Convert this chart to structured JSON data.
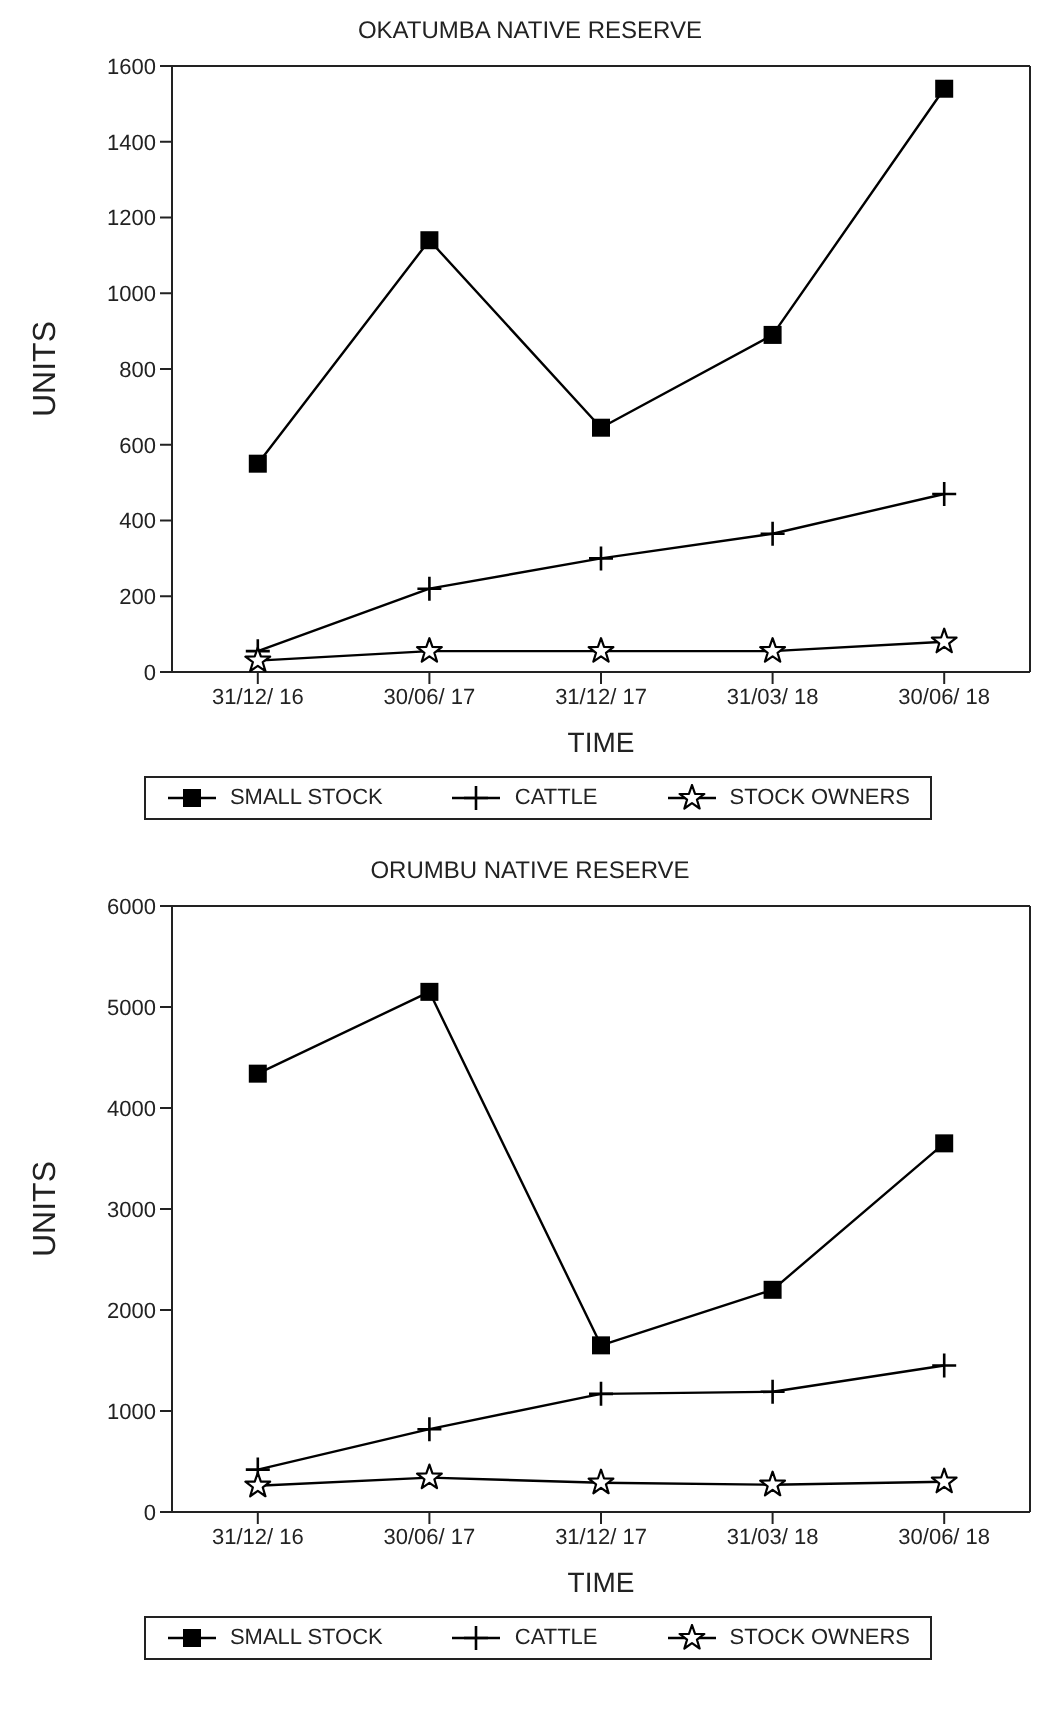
{
  "chart_data": [
    {
      "type": "line",
      "title": "OKATUMBA NATIVE RESERVE",
      "xlabel": "TIME",
      "ylabel": "UNITS",
      "categories": [
        "31/12/ 16",
        "30/06/ 17",
        "31/12/ 17",
        "31/03/ 18",
        "30/06/ 18"
      ],
      "ylim": [
        0,
        1600
      ],
      "yticks": [
        0,
        200,
        400,
        600,
        800,
        1000,
        1200,
        1400,
        1600
      ],
      "grid": false,
      "legend": "bottom",
      "line_style": "solid",
      "series": [
        {
          "name": "SMALL STOCK",
          "color": "#000000",
          "marker": "square",
          "values": [
            550,
            1140,
            645,
            890,
            1540
          ]
        },
        {
          "name": "CATTLE",
          "color": "#000000",
          "marker": "cross",
          "values": [
            55,
            220,
            300,
            365,
            470
          ]
        },
        {
          "name": "STOCK OWNERS",
          "color": "#000000",
          "marker": "star",
          "values": [
            30,
            55,
            55,
            55,
            80
          ]
        }
      ]
    },
    {
      "type": "line",
      "title": "ORUMBU NATIVE RESERVE",
      "xlabel": "TIME",
      "ylabel": "UNITS",
      "categories": [
        "31/12/ 16",
        "30/06/ 17",
        "31/12/ 17",
        "31/03/ 18",
        "30/06/ 18"
      ],
      "ylim": [
        0,
        6000
      ],
      "yticks": [
        0,
        1000,
        2000,
        3000,
        4000,
        5000,
        6000
      ],
      "grid": false,
      "legend": "bottom",
      "line_style": "solid",
      "series": [
        {
          "name": "SMALL STOCK",
          "color": "#000000",
          "marker": "square",
          "values": [
            4340,
            5150,
            1650,
            2200,
            3650
          ]
        },
        {
          "name": "CATTLE",
          "color": "#000000",
          "marker": "cross",
          "values": [
            420,
            820,
            1170,
            1190,
            1450
          ]
        },
        {
          "name": "STOCK OWNERS",
          "color": "#000000",
          "marker": "star",
          "values": [
            260,
            340,
            290,
            270,
            300
          ]
        }
      ]
    }
  ]
}
